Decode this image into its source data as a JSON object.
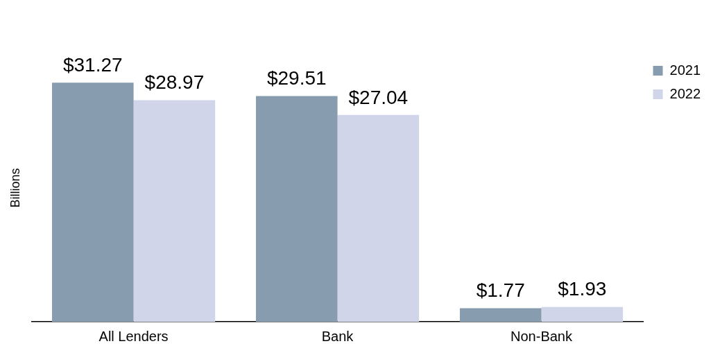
{
  "chart_data": {
    "type": "bar",
    "ylabel": "Billions",
    "categories": [
      "All Lenders",
      "Bank",
      "Non-Bank"
    ],
    "series": [
      {
        "name": "2021",
        "color": "#879daf",
        "values": [
          31.27,
          29.51,
          1.77
        ],
        "value_labels": [
          "$31.27",
          "$29.51",
          "$1.77"
        ]
      },
      {
        "name": "2022",
        "color": "#d0d5e9",
        "values": [
          28.97,
          27.04,
          1.93
        ],
        "value_labels": [
          "$28.97",
          "$27.04",
          "$1.93"
        ]
      }
    ],
    "legend": "top right",
    "grid": false
  }
}
